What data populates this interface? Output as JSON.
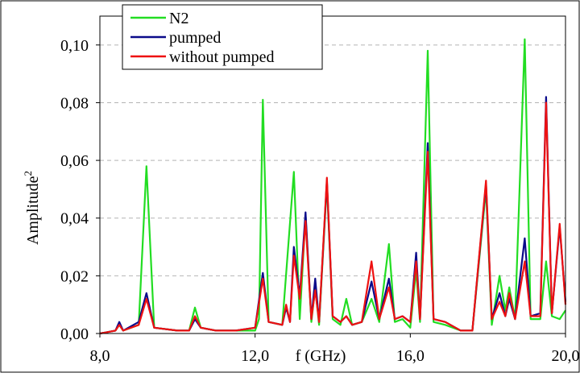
{
  "chart_data": {
    "type": "line",
    "xlabel": "f (GHz)",
    "ylabel": "Amplitude",
    "ylabel_superscript": "2",
    "xlim": [
      8.0,
      20.0
    ],
    "ylim": [
      0.0,
      0.11
    ],
    "x_ticks": [
      8.0,
      12.0,
      16.0,
      20.0
    ],
    "x_tick_labels": [
      "8,0",
      "12,0",
      "16,0",
      "20,0"
    ],
    "y_ticks": [
      0.0,
      0.02,
      0.04,
      0.06,
      0.08,
      0.1
    ],
    "y_tick_labels": [
      "0,00",
      "0,02",
      "0,04",
      "0,06",
      "0,08",
      "0,10"
    ],
    "grid": "horizontal dashed",
    "legend_position": "top-left",
    "series": [
      {
        "name": "N2",
        "color": "#22dd22",
        "points": [
          [
            8.0,
            0.0
          ],
          [
            8.4,
            0.001
          ],
          [
            8.5,
            0.003
          ],
          [
            8.6,
            0.001
          ],
          [
            9.0,
            0.003
          ],
          [
            9.2,
            0.058
          ],
          [
            9.4,
            0.002
          ],
          [
            10.0,
            0.001
          ],
          [
            10.3,
            0.001
          ],
          [
            10.45,
            0.009
          ],
          [
            10.6,
            0.002
          ],
          [
            11.0,
            0.001
          ],
          [
            11.5,
            0.001
          ],
          [
            12.0,
            0.001
          ],
          [
            12.1,
            0.005
          ],
          [
            12.2,
            0.081
          ],
          [
            12.35,
            0.004
          ],
          [
            12.7,
            0.003
          ],
          [
            13.0,
            0.056
          ],
          [
            13.15,
            0.005
          ],
          [
            13.3,
            0.041
          ],
          [
            13.45,
            0.004
          ],
          [
            13.55,
            0.016
          ],
          [
            13.65,
            0.003
          ],
          [
            13.85,
            0.052
          ],
          [
            14.0,
            0.005
          ],
          [
            14.2,
            0.003
          ],
          [
            14.35,
            0.012
          ],
          [
            14.5,
            0.003
          ],
          [
            14.75,
            0.004
          ],
          [
            15.0,
            0.012
          ],
          [
            15.2,
            0.004
          ],
          [
            15.45,
            0.031
          ],
          [
            15.6,
            0.004
          ],
          [
            15.8,
            0.005
          ],
          [
            16.0,
            0.002
          ],
          [
            16.15,
            0.022
          ],
          [
            16.25,
            0.004
          ],
          [
            16.45,
            0.098
          ],
          [
            16.6,
            0.004
          ],
          [
            16.9,
            0.003
          ],
          [
            17.3,
            0.001
          ],
          [
            17.6,
            0.001
          ],
          [
            17.95,
            0.05
          ],
          [
            18.1,
            0.003
          ],
          [
            18.3,
            0.02
          ],
          [
            18.45,
            0.008
          ],
          [
            18.55,
            0.016
          ],
          [
            18.7,
            0.005
          ],
          [
            18.95,
            0.102
          ],
          [
            19.1,
            0.005
          ],
          [
            19.35,
            0.005
          ],
          [
            19.5,
            0.025
          ],
          [
            19.65,
            0.006
          ],
          [
            19.85,
            0.005
          ],
          [
            20.0,
            0.008
          ]
        ]
      },
      {
        "name": "pumped",
        "color": "#0a0a8a",
        "points": [
          [
            8.0,
            0.0
          ],
          [
            8.4,
            0.001
          ],
          [
            8.5,
            0.004
          ],
          [
            8.6,
            0.001
          ],
          [
            9.0,
            0.004
          ],
          [
            9.2,
            0.014
          ],
          [
            9.4,
            0.002
          ],
          [
            10.0,
            0.001
          ],
          [
            10.3,
            0.001
          ],
          [
            10.45,
            0.005
          ],
          [
            10.6,
            0.002
          ],
          [
            11.0,
            0.001
          ],
          [
            11.5,
            0.001
          ],
          [
            12.0,
            0.002
          ],
          [
            12.2,
            0.021
          ],
          [
            12.35,
            0.004
          ],
          [
            12.7,
            0.003
          ],
          [
            12.8,
            0.009
          ],
          [
            12.9,
            0.004
          ],
          [
            13.0,
            0.03
          ],
          [
            13.15,
            0.013
          ],
          [
            13.3,
            0.042
          ],
          [
            13.45,
            0.005
          ],
          [
            13.55,
            0.019
          ],
          [
            13.65,
            0.004
          ],
          [
            13.85,
            0.053
          ],
          [
            14.0,
            0.006
          ],
          [
            14.2,
            0.004
          ],
          [
            14.35,
            0.006
          ],
          [
            14.5,
            0.003
          ],
          [
            14.75,
            0.004
          ],
          [
            15.0,
            0.018
          ],
          [
            15.2,
            0.005
          ],
          [
            15.45,
            0.019
          ],
          [
            15.6,
            0.005
          ],
          [
            15.8,
            0.006
          ],
          [
            16.0,
            0.004
          ],
          [
            16.15,
            0.028
          ],
          [
            16.25,
            0.005
          ],
          [
            16.45,
            0.066
          ],
          [
            16.6,
            0.005
          ],
          [
            16.9,
            0.004
          ],
          [
            17.3,
            0.001
          ],
          [
            17.6,
            0.001
          ],
          [
            17.95,
            0.052
          ],
          [
            18.1,
            0.005
          ],
          [
            18.3,
            0.014
          ],
          [
            18.45,
            0.006
          ],
          [
            18.55,
            0.012
          ],
          [
            18.7,
            0.005
          ],
          [
            18.95,
            0.033
          ],
          [
            19.1,
            0.006
          ],
          [
            19.35,
            0.007
          ],
          [
            19.5,
            0.082
          ],
          [
            19.65,
            0.007
          ],
          [
            19.85,
            0.037
          ],
          [
            20.0,
            0.011
          ]
        ]
      },
      {
        "name": "without pumped",
        "color": "#ee1111",
        "points": [
          [
            8.0,
            0.0
          ],
          [
            8.4,
            0.001
          ],
          [
            8.5,
            0.003
          ],
          [
            8.6,
            0.001
          ],
          [
            9.0,
            0.003
          ],
          [
            9.2,
            0.012
          ],
          [
            9.4,
            0.002
          ],
          [
            10.0,
            0.001
          ],
          [
            10.3,
            0.001
          ],
          [
            10.45,
            0.006
          ],
          [
            10.6,
            0.002
          ],
          [
            11.0,
            0.001
          ],
          [
            11.5,
            0.001
          ],
          [
            12.0,
            0.002
          ],
          [
            12.2,
            0.019
          ],
          [
            12.35,
            0.004
          ],
          [
            12.7,
            0.003
          ],
          [
            12.8,
            0.01
          ],
          [
            12.9,
            0.004
          ],
          [
            13.0,
            0.027
          ],
          [
            13.15,
            0.012
          ],
          [
            13.3,
            0.039
          ],
          [
            13.45,
            0.005
          ],
          [
            13.55,
            0.015
          ],
          [
            13.65,
            0.004
          ],
          [
            13.85,
            0.054
          ],
          [
            14.0,
            0.006
          ],
          [
            14.2,
            0.004
          ],
          [
            14.35,
            0.006
          ],
          [
            14.5,
            0.003
          ],
          [
            14.75,
            0.004
          ],
          [
            15.0,
            0.025
          ],
          [
            15.2,
            0.005
          ],
          [
            15.45,
            0.016
          ],
          [
            15.6,
            0.005
          ],
          [
            15.8,
            0.006
          ],
          [
            16.0,
            0.004
          ],
          [
            16.15,
            0.025
          ],
          [
            16.25,
            0.005
          ],
          [
            16.45,
            0.063
          ],
          [
            16.6,
            0.005
          ],
          [
            16.9,
            0.004
          ],
          [
            17.3,
            0.001
          ],
          [
            17.6,
            0.001
          ],
          [
            17.95,
            0.053
          ],
          [
            18.1,
            0.005
          ],
          [
            18.3,
            0.011
          ],
          [
            18.45,
            0.006
          ],
          [
            18.55,
            0.014
          ],
          [
            18.7,
            0.005
          ],
          [
            18.95,
            0.025
          ],
          [
            19.1,
            0.006
          ],
          [
            19.35,
            0.006
          ],
          [
            19.5,
            0.08
          ],
          [
            19.65,
            0.007
          ],
          [
            19.85,
            0.038
          ],
          [
            20.0,
            0.01
          ]
        ]
      }
    ]
  }
}
